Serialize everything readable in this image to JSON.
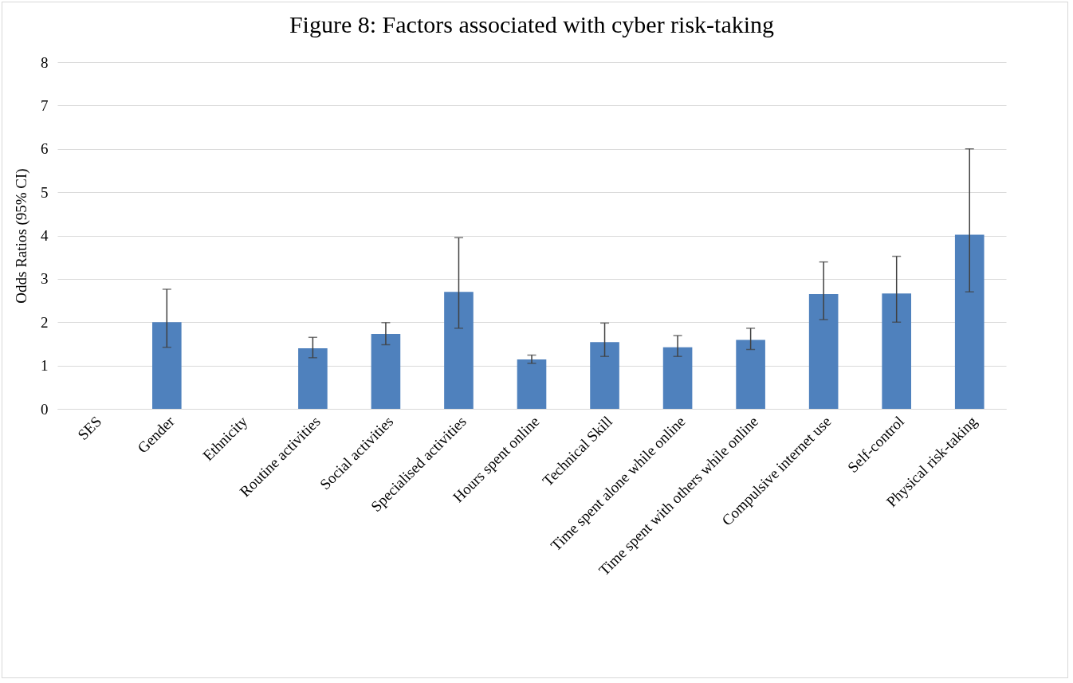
{
  "chart_data": {
    "type": "bar",
    "title": "Figure 8: Factors associated with cyber risk-taking",
    "ylabel": "Odds Ratios (95% CI)",
    "categories": [
      "SES",
      "Gender",
      "Ethnicity",
      "Routine activities",
      "Social activities",
      "Specialised activities",
      "Hours spent online",
      "Technical Skill",
      "Time spent alone while online",
      "Time spent with others while online",
      "Compulsive internet use",
      "Self-control",
      "Physical risk-taking"
    ],
    "series": [
      {
        "color": "#4f81bd",
        "values": [
          null,
          2.0,
          null,
          1.4,
          1.73,
          2.7,
          1.14,
          1.54,
          1.42,
          1.59,
          2.65,
          2.66,
          4.02
        ],
        "errors": [
          null,
          [
            1.42,
            2.76
          ],
          null,
          [
            1.18,
            1.65
          ],
          [
            1.48,
            1.99
          ],
          [
            1.86,
            3.95
          ],
          [
            1.05,
            1.24
          ],
          [
            1.21,
            1.98
          ],
          [
            1.21,
            1.69
          ],
          [
            1.37,
            1.86
          ],
          [
            2.06,
            3.39
          ],
          [
            2.0,
            3.52
          ],
          [
            2.7,
            6.0
          ]
        ]
      }
    ],
    "ylim": [
      0,
      8
    ],
    "yticks": [
      0,
      1,
      2,
      3,
      4,
      5,
      6,
      7,
      8
    ],
    "grid": "y"
  }
}
